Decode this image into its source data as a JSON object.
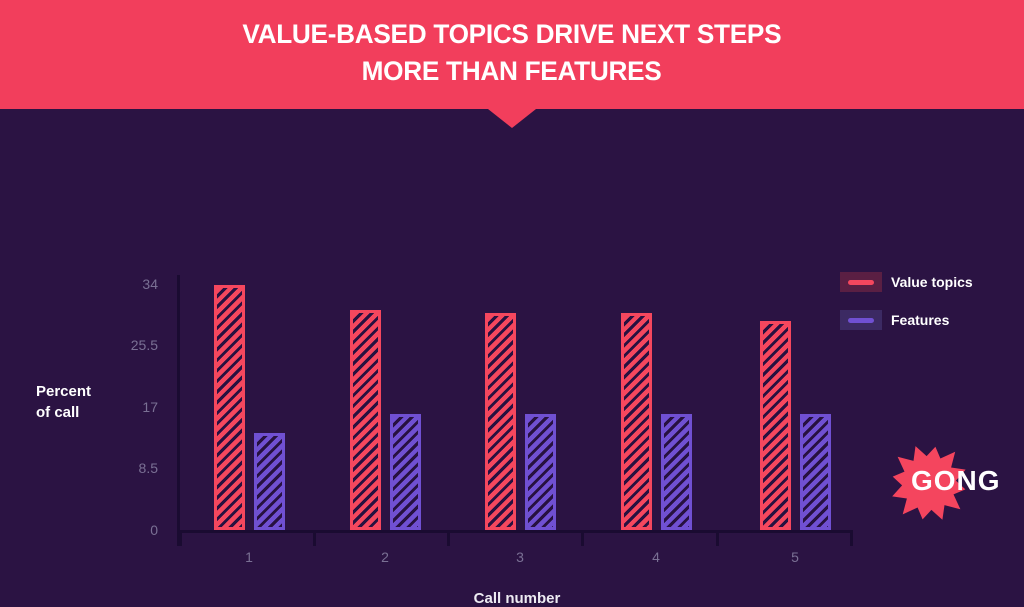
{
  "banner": {
    "title_line1": "VALUE-BASED TOPICS DRIVE NEXT STEPS",
    "title_line2": "MORE THAN FEATURES"
  },
  "chart_data": {
    "type": "bar",
    "categories": [
      "1",
      "2",
      "3",
      "4",
      "5"
    ],
    "series": [
      {
        "name": "Value topics",
        "color": "#f5475e",
        "values": [
          34,
          30.5,
          30,
          30,
          29
        ]
      },
      {
        "name": "Features",
        "color": "#7050d2",
        "values": [
          13.5,
          16,
          16,
          16,
          16
        ]
      }
    ],
    "xlabel": "Call number",
    "ylabel": "Percent of call",
    "ylabel_lines": [
      "Percent",
      "of call"
    ],
    "yticks": [
      0,
      8.5,
      17,
      25.5,
      34
    ],
    "ytick_labels": [
      "0",
      "8.5",
      "17",
      "25.5",
      "34"
    ],
    "ylim": [
      0,
      34
    ],
    "grid": false,
    "legend_position": "top-right",
    "bar_style": "diagonal-hatch"
  },
  "legend": {
    "swatch_bgs": [
      "#5a1f43",
      "#3c2a63"
    ]
  },
  "logo": {
    "text": "GONG",
    "star_color": "#f4455e"
  },
  "colors": {
    "background": "#2b1343",
    "banner_bg": "#f23e5c",
    "axis": "#1a0b31",
    "tick_label": "#7a7094",
    "text": "#ffffff",
    "hatch_dark": "#271140"
  }
}
